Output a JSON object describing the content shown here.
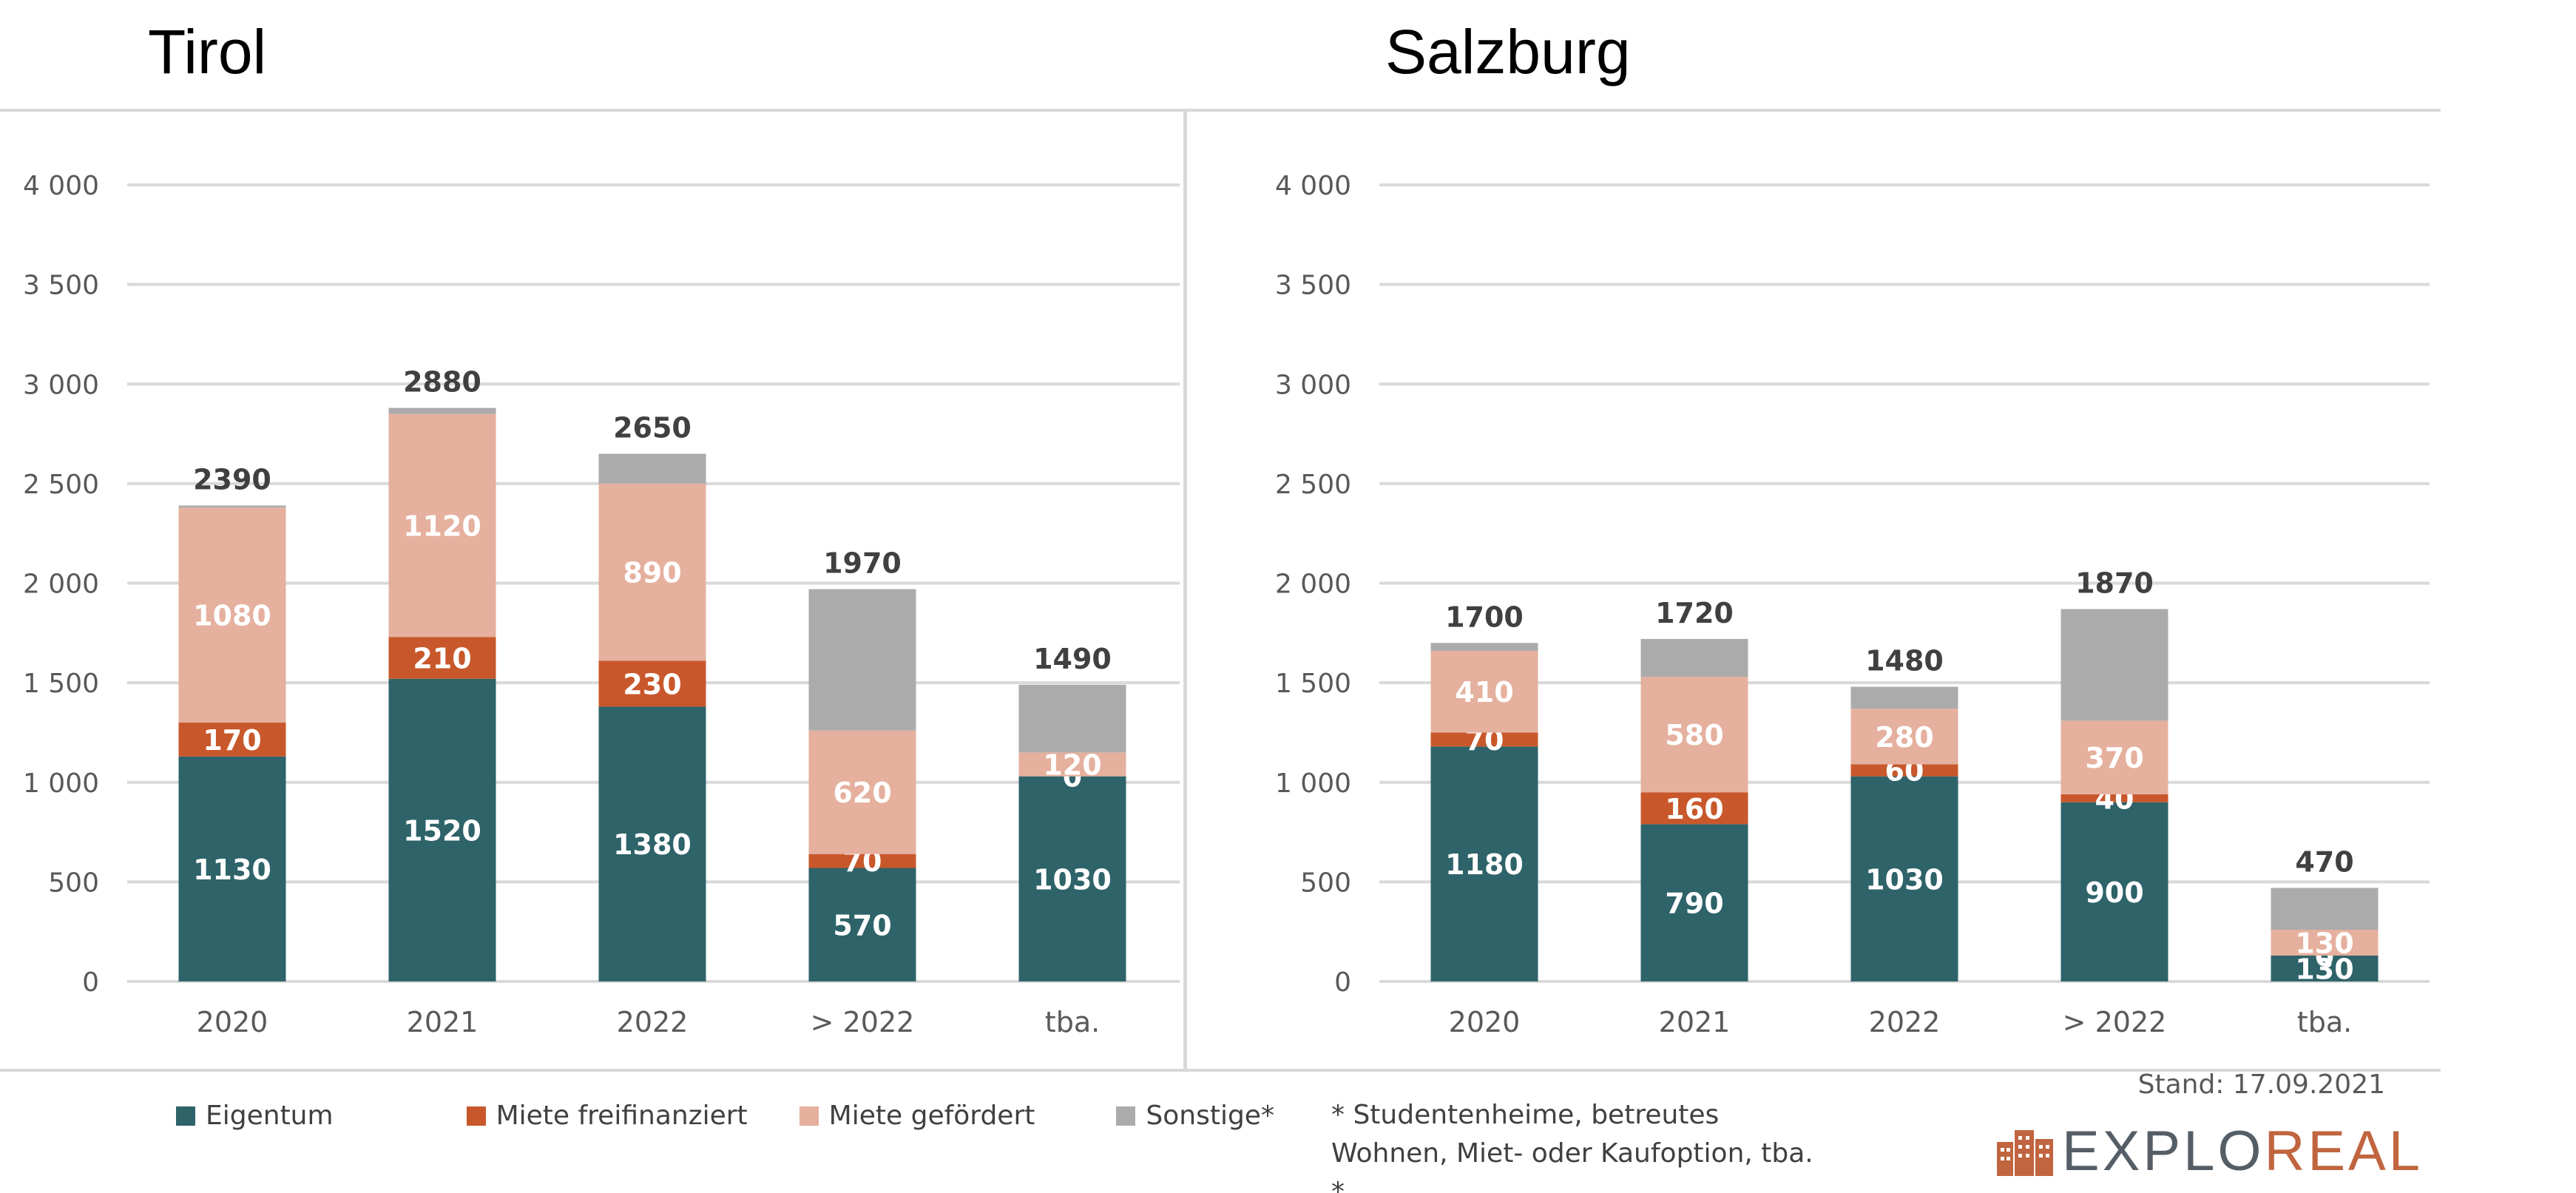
{
  "colors": {
    "eigentum": "#2e6369",
    "miete_frei": "#c8582b",
    "miete_gefoerdert": "#e5b09e",
    "sonstige": "#ababab",
    "total_label": "#404040",
    "tick_label": "#595959",
    "gridline": "#d9d9d9"
  },
  "chart_data": [
    {
      "type": "bar",
      "stacked": true,
      "title": "Tirol",
      "categories": [
        "2020",
        "2021",
        "2022",
        "> 2022",
        "tba."
      ],
      "yticks": [
        "0",
        "500",
        "1 000",
        "1 500",
        "2 000",
        "2 500",
        "3 000",
        "3 500",
        "4 000"
      ],
      "ylim": [
        0,
        4000
      ],
      "series": [
        {
          "name": "Eigentum",
          "values": [
            1130,
            1520,
            1380,
            570,
            1030
          ],
          "labels": [
            "1130",
            "1520",
            "1380",
            "570",
            "1030"
          ]
        },
        {
          "name": "Miete freifinanziert",
          "values": [
            170,
            210,
            230,
            70,
            0
          ],
          "labels": [
            "170",
            "210",
            "230",
            "70",
            "0"
          ]
        },
        {
          "name": "Miete gefördert",
          "values": [
            1080,
            1120,
            890,
            620,
            120
          ],
          "labels": [
            "1080",
            "1120",
            "890",
            "620",
            "120"
          ]
        },
        {
          "name": "Sonstige*",
          "values": [
            10,
            30,
            150,
            710,
            340
          ],
          "labels": [
            "",
            "",
            "",
            "",
            ""
          ]
        }
      ],
      "totals": [
        "2390",
        "2880",
        "2650",
        "1970",
        "1490"
      ]
    },
    {
      "type": "bar",
      "stacked": true,
      "title": "Salzburg",
      "categories": [
        "2020",
        "2021",
        "2022",
        "> 2022",
        "tba."
      ],
      "yticks": [
        "0",
        "500",
        "1 000",
        "1 500",
        "2 000",
        "2 500",
        "3 000",
        "3 500",
        "4 000"
      ],
      "ylim": [
        0,
        4000
      ],
      "series": [
        {
          "name": "Eigentum",
          "values": [
            1180,
            790,
            1030,
            900,
            130
          ],
          "labels": [
            "1180",
            "790",
            "1030",
            "900",
            "130"
          ]
        },
        {
          "name": "Miete freifinanziert",
          "values": [
            70,
            160,
            60,
            40,
            0
          ],
          "labels": [
            "70",
            "160",
            "60",
            "40",
            "0"
          ]
        },
        {
          "name": "Miete gefördert",
          "values": [
            410,
            580,
            280,
            370,
            130
          ],
          "labels": [
            "410",
            "580",
            "280",
            "370",
            "130"
          ]
        },
        {
          "name": "Sonstige*",
          "values": [
            40,
            190,
            110,
            560,
            210
          ],
          "labels": [
            "",
            "",
            "",
            "",
            ""
          ]
        }
      ],
      "totals": [
        "1700",
        "1720",
        "1480",
        "1870",
        "470"
      ]
    }
  ],
  "legend": {
    "items": [
      {
        "label": "Eigentum",
        "color": "#2e6369"
      },
      {
        "label": "Miete freifinanziert",
        "color": "#c8582b"
      },
      {
        "label": "Miete gefördert",
        "color": "#e5b09e"
      },
      {
        "label": "Sonstige*",
        "color": "#ababab"
      }
    ]
  },
  "footnote": {
    "line1": "* Studentenheime, betreutes",
    "line2": "Wohnen, Miet- oder Kaufoption, tba.",
    "line3": "*"
  },
  "stand": "Stand: 17.09.2021",
  "logo": {
    "text_main": "EXPLO",
    "text_accent": "REAL",
    "icon": "building-logo-icon"
  }
}
